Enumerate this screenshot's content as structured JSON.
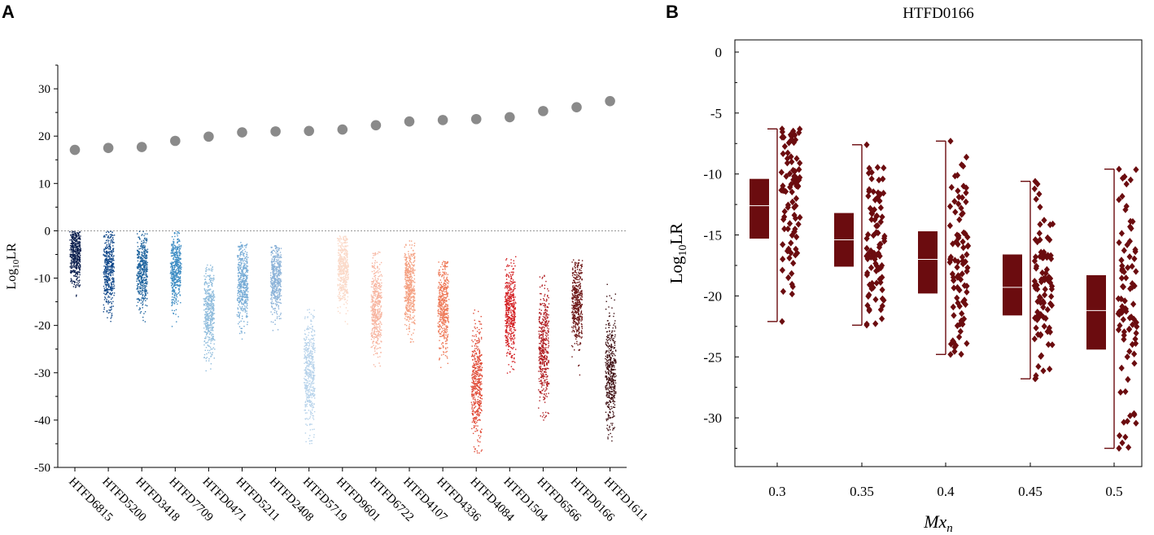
{
  "panel_a_letter": "A",
  "panel_b_letter": "B",
  "chart_data": [
    {
      "type": "scatter",
      "title": "",
      "xlabel": "",
      "ylabel": "Log10LR",
      "ylabel_main": "Log",
      "ylabel_sub": "10",
      "ylabel_tail": "LR",
      "ylim": [
        -50,
        35
      ],
      "yticks": [
        30,
        20,
        10,
        0,
        -10,
        -20,
        -30,
        -40,
        -50
      ],
      "reference_line": 0,
      "categories": [
        "HTFD6815",
        "HTFD5200",
        "HTFD3418",
        "HTFD7709",
        "HTFD0471",
        "HTFD5211",
        "HTFD2408",
        "HTFD5719",
        "HTFD9601",
        "HTFD6722",
        "HTFD4107",
        "HTFD4336",
        "HTFD4084",
        "HTFD1504",
        "HTFD6566",
        "HTFD0166",
        "HTFD1611"
      ],
      "series": [
        {
          "name": "Log10LR (Mx = 0)",
          "marker": "large gray circle",
          "values": [
            17.1,
            17.5,
            17.7,
            19.0,
            19.9,
            20.8,
            21.0,
            21.1,
            21.4,
            22.3,
            23.1,
            23.4,
            23.6,
            24.0,
            25.3,
            26.1,
            27.4
          ]
        },
        {
          "name": "Log10LR distribution (jittered points)",
          "median": [
            -5,
            -8,
            -8,
            -8,
            -17,
            -11,
            -10,
            -30,
            -8,
            -16,
            -12,
            -16,
            -32,
            -17,
            -25,
            -15,
            -30
          ],
          "spread_sd": [
            3.2,
            4.2,
            3.8,
            3.8,
            4.8,
            4.4,
            3.8,
            5.8,
            4.0,
            5.0,
            4.2,
            5.0,
            6.2,
            5.0,
            6.0,
            4.6,
            6.0
          ],
          "min": [
            -17,
            -22,
            -20,
            -21,
            -30,
            -25,
            -25,
            -45,
            -21,
            -31,
            -25,
            -31,
            -47,
            -30,
            -40,
            -33,
            -45
          ],
          "max": [
            0,
            0,
            0,
            0,
            -7,
            -2,
            -3,
            -16,
            -1,
            -4,
            -2,
            -6,
            -16,
            -5,
            -9,
            -6,
            -11
          ],
          "colors": [
            "#0b1f4e",
            "#154b8c",
            "#21659f",
            "#3e8dc4",
            "#8fbcdc",
            "#77acd6",
            "#8bb2d8",
            "#b6d2ea",
            "#fbd9c8",
            "#f7b5a0",
            "#f4a081",
            "#ee7a59",
            "#e04a36",
            "#d31f22",
            "#b01c20",
            "#6b1414",
            "#3c0c0f"
          ]
        }
      ]
    },
    {
      "type": "box",
      "title": "HTFD0166",
      "xlabel": "Mx_n",
      "xlabel_main": "Mx",
      "xlabel_sub": "n",
      "ylabel": "Log10LR",
      "ylabel_main": "Log",
      "ylabel_sub": "10",
      "ylabel_tail": "LR",
      "ylim": [
        -34,
        1
      ],
      "yticks": [
        0,
        -5,
        -10,
        -15,
        -20,
        -25,
        -30
      ],
      "categories": [
        "0.3",
        "0.35",
        "0.4",
        "0.45",
        "0.5"
      ],
      "color": "#6b0c0f",
      "boxes": [
        {
          "q1": -15.3,
          "median": -12.6,
          "q3": -10.4,
          "whisker_low": -22.1,
          "whisker_high": -6.3
        },
        {
          "q1": -17.6,
          "median": -15.4,
          "q3": -13.2,
          "whisker_low": -22.4,
          "whisker_high": -7.6
        },
        {
          "q1": -19.8,
          "median": -17.0,
          "q3": -14.7,
          "whisker_low": -24.8,
          "whisker_high": -7.3
        },
        {
          "q1": -21.6,
          "median": -19.3,
          "q3": -16.6,
          "whisker_low": -26.8,
          "whisker_high": -10.6
        },
        {
          "q1": -24.4,
          "median": -21.2,
          "q3": -18.3,
          "whisker_low": -32.5,
          "whisker_high": -9.6
        }
      ]
    }
  ]
}
